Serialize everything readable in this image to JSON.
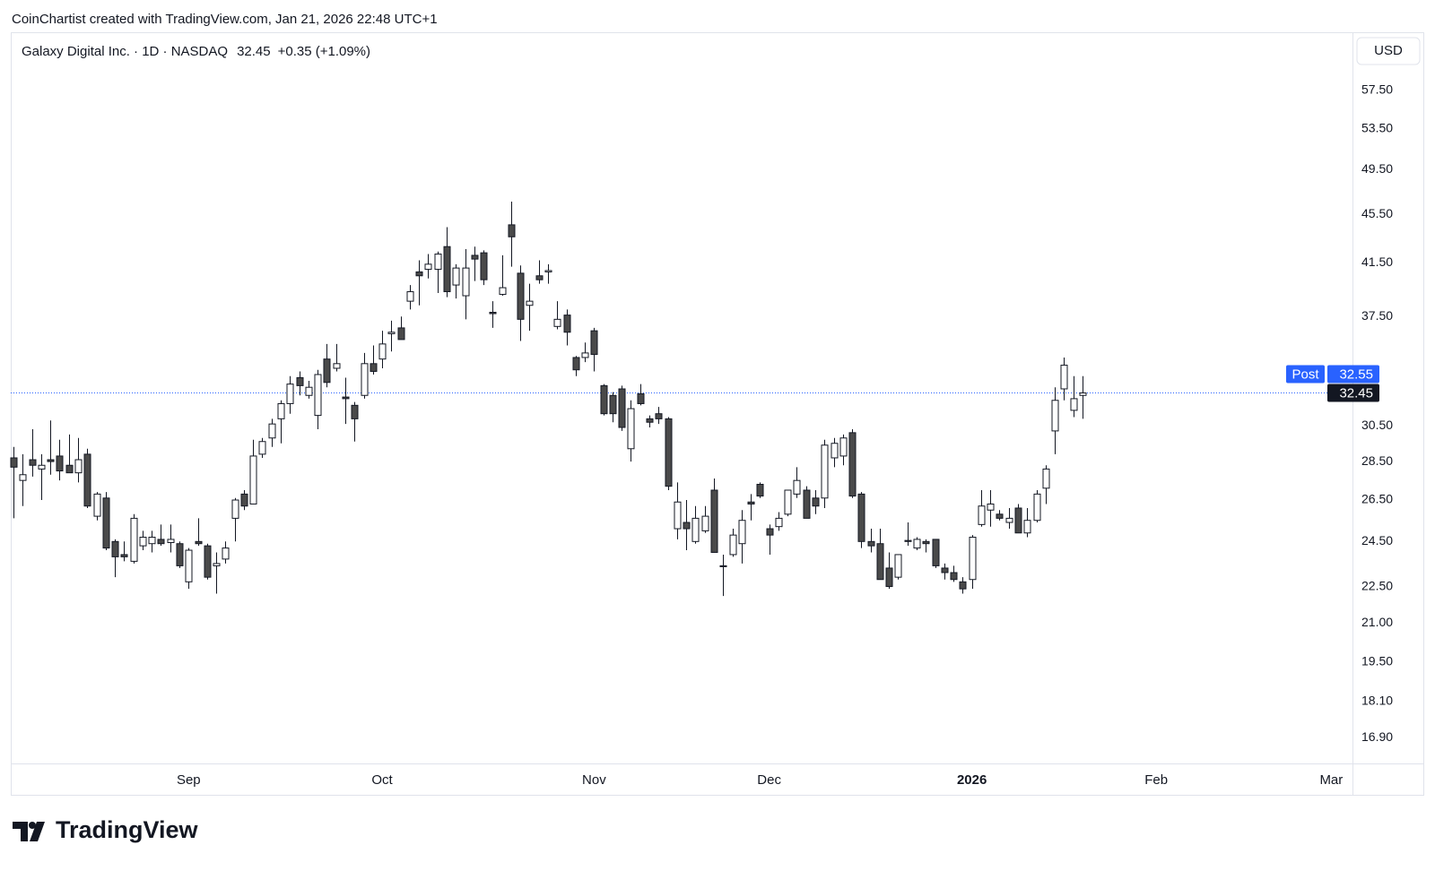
{
  "attribution": "CoinChartist created with TradingView.com, Jan 21, 2026 22:48 UTC+1",
  "logo": "TradingView",
  "chart_data": {
    "type": "candlestick",
    "title": "Galaxy Digital Inc. · 1D · NASDAQ",
    "price_text": "32.45",
    "change_text": "+0.35 (+1.09%)",
    "currency": "USD",
    "log_scale": true,
    "grid": false,
    "up_color": "#ffffff",
    "down_color": "#4a4a4a",
    "wick_color": "#131722",
    "xlim": [
      -0.3,
      145.3
    ],
    "xticks": [
      {
        "value": 19,
        "label": "Sep"
      },
      {
        "value": 40,
        "label": "Oct"
      },
      {
        "value": 63,
        "label": "Nov"
      },
      {
        "value": 82,
        "label": "Dec"
      },
      {
        "value": 104,
        "label": "2026"
      },
      {
        "value": 124,
        "label": "Feb"
      },
      {
        "value": 143,
        "label": "Mar"
      }
    ],
    "ylim": [
      16.1,
      64.2
    ],
    "yticks": [
      {
        "value": 57.5,
        "label": "57.50"
      },
      {
        "value": 53.5,
        "label": "53.50"
      },
      {
        "value": 49.5,
        "label": "49.50"
      },
      {
        "value": 45.5,
        "label": "45.50"
      },
      {
        "value": 41.5,
        "label": "41.50"
      },
      {
        "value": 37.5,
        "label": "37.50"
      },
      {
        "value": 30.5,
        "label": "30.50"
      },
      {
        "value": 28.5,
        "label": "28.50"
      },
      {
        "value": 26.5,
        "label": "26.50"
      },
      {
        "value": 24.5,
        "label": "24.50"
      },
      {
        "value": 22.5,
        "label": "22.50"
      },
      {
        "value": 21,
        "label": "21.00"
      },
      {
        "value": 19.5,
        "label": "19.50"
      },
      {
        "value": 18.1,
        "label": "18.10"
      },
      {
        "value": 16.9,
        "label": "16.90"
      }
    ],
    "last": {
      "value": 32.45,
      "label": "32.45"
    },
    "post": {
      "name": "Post",
      "value": 32.55,
      "label": "32.55",
      "color": "#2962ff"
    },
    "open": [
      28.7,
      27.5,
      28.6,
      28.1,
      28.6,
      28.8,
      28.3,
      27.9,
      28.9,
      25.7,
      26.6,
      24.5,
      23.9,
      23.6,
      24.3,
      24.4,
      24.6,
      24.45,
      24.4,
      22.7,
      24.5,
      24.3,
      23.4,
      23.7,
      25.6,
      26.8,
      26.3,
      28.9,
      29.8,
      30.9,
      31.8,
      33.4,
      32.3,
      31.1,
      34.6,
      34.0,
      32.2,
      31.7,
      32.3,
      34.3,
      34.6,
      36.3,
      36.7,
      38.6,
      40.8,
      41.0,
      41.0,
      42.8,
      39.8,
      39.0,
      42.1,
      42.3,
      37.8,
      39.1,
      44.6,
      40.7,
      38.3,
      40.5,
      40.8,
      36.8,
      37.6,
      34.7,
      34.7,
      36.5,
      32.9,
      32.3,
      32.7,
      29.2,
      32.4,
      30.9,
      31.2,
      30.9,
      25.1,
      25.4,
      24.5,
      25.0,
      27.0,
      23.4,
      23.9,
      24.4,
      26.4,
      27.3,
      25.1,
      25.2,
      25.8,
      26.8,
      27.0,
      26.6,
      26.6,
      28.7,
      28.8,
      30.1,
      26.8,
      24.5,
      24.4,
      23.3,
      22.9,
      24.55,
      24.2,
      24.5,
      24.6,
      23.3,
      23.1,
      22.7,
      22.8,
      25.3,
      26.0,
      25.8,
      25.4,
      26.1,
      24.9,
      25.5,
      27.1,
      30.2,
      32.7,
      31.4,
      32.3
    ],
    "high": [
      29.3,
      28.9,
      30.3,
      28.9,
      30.8,
      29.7,
      30.0,
      29.8,
      29.2,
      26.9,
      26.9,
      24.6,
      24.5,
      25.8,
      25.0,
      25.0,
      25.3,
      25.3,
      24.5,
      24.2,
      25.6,
      24.4,
      24.0,
      24.5,
      26.6,
      27.0,
      29.7,
      29.8,
      30.9,
      32.0,
      33.5,
      33.8,
      33.2,
      33.9,
      35.6,
      35.6,
      33.4,
      31.9,
      35.0,
      35.5,
      36.5,
      37.2,
      37.5,
      39.8,
      41.7,
      42.2,
      42.4,
      44.4,
      41.4,
      42.6,
      42.8,
      42.5,
      38.6,
      42.1,
      46.6,
      41.3,
      39.9,
      41.7,
      41.4,
      38.6,
      38.0,
      34.8,
      35.7,
      36.7,
      33.0,
      32.5,
      32.9,
      32.0,
      33.0,
      31.1,
      31.6,
      31.0,
      27.4,
      26.5,
      26.2,
      26.2,
      27.6,
      23.9,
      25.1,
      26.0,
      26.8,
      27.4,
      25.3,
      25.9,
      27.0,
      28.2,
      27.2,
      27.0,
      29.7,
      29.8,
      30.0,
      30.3,
      26.9,
      25.1,
      25.1,
      24.0,
      23.9,
      25.4,
      24.7,
      24.6,
      24.6,
      23.5,
      23.4,
      22.9,
      24.8,
      27.0,
      27.0,
      26.0,
      26.1,
      26.3,
      26.1,
      27.0,
      28.3,
      32.8,
      34.7,
      33.5,
      33.5
    ],
    "low": [
      25.6,
      26.2,
      27.7,
      26.5,
      27.8,
      27.5,
      27.9,
      27.4,
      26.1,
      25.5,
      24.1,
      22.9,
      23.6,
      23.5,
      24.1,
      24.0,
      24.3,
      24.0,
      23.3,
      22.4,
      24.3,
      22.8,
      22.2,
      23.5,
      24.5,
      26.0,
      26.3,
      28.7,
      29.3,
      29.5,
      31.2,
      32.3,
      32.1,
      30.3,
      32.8,
      33.8,
      30.6,
      29.6,
      32.1,
      33.6,
      34.0,
      35.1,
      35.9,
      38.0,
      38.3,
      40.3,
      39.2,
      38.9,
      38.8,
      37.3,
      40.1,
      39.8,
      36.7,
      39.0,
      41.2,
      35.8,
      36.5,
      39.9,
      39.9,
      36.6,
      35.5,
      33.5,
      34.4,
      33.8,
      31.1,
      30.7,
      30.2,
      28.5,
      31.7,
      30.4,
      30.6,
      27.0,
      24.6,
      24.1,
      24.4,
      24.9,
      24.0,
      22.1,
      23.8,
      23.5,
      25.5,
      26.6,
      23.9,
      25.0,
      25.7,
      26.6,
      25.6,
      25.8,
      26.1,
      28.2,
      28.3,
      26.6,
      24.2,
      24.0,
      22.8,
      22.4,
      22.8,
      24.3,
      24.1,
      24.0,
      23.3,
      22.8,
      22.7,
      22.2,
      22.4,
      25.2,
      25.2,
      25.5,
      25.1,
      24.9,
      24.7,
      25.4,
      26.3,
      28.9,
      32.0,
      31.0,
      30.9
    ],
    "close": [
      28.2,
      27.8,
      28.3,
      28.3,
      28.5,
      28.0,
      27.9,
      28.6,
      26.2,
      26.8,
      24.2,
      23.8,
      23.8,
      25.6,
      24.7,
      24.7,
      24.4,
      24.6,
      23.4,
      24.1,
      24.4,
      22.9,
      23.5,
      24.2,
      26.5,
      26.2,
      28.8,
      29.6,
      30.6,
      31.8,
      33.0,
      32.9,
      32.8,
      33.6,
      33.1,
      34.3,
      32.1,
      30.9,
      34.3,
      33.8,
      35.6,
      36.4,
      35.9,
      39.3,
      40.5,
      41.4,
      42.2,
      39.3,
      41.1,
      41.1,
      41.8,
      40.2,
      37.7,
      39.6,
      43.6,
      37.3,
      38.6,
      40.2,
      40.9,
      37.3,
      36.4,
      33.9,
      35.0,
      34.9,
      31.2,
      31.2,
      30.4,
      31.5,
      31.8,
      30.7,
      30.9,
      27.2,
      26.4,
      25.1,
      25.6,
      25.7,
      24.0,
      23.4,
      24.8,
      25.5,
      26.3,
      26.7,
      24.8,
      25.6,
      27.0,
      27.5,
      25.6,
      26.2,
      29.4,
      29.5,
      29.8,
      26.7,
      24.5,
      24.3,
      22.8,
      22.5,
      23.9,
      24.5,
      24.6,
      24.4,
      23.4,
      23.1,
      22.8,
      22.4,
      24.7,
      26.2,
      26.3,
      25.6,
      25.6,
      24.9,
      25.5,
      26.8,
      28.1,
      32.0,
      34.2,
      32.1,
      32.45
    ]
  }
}
